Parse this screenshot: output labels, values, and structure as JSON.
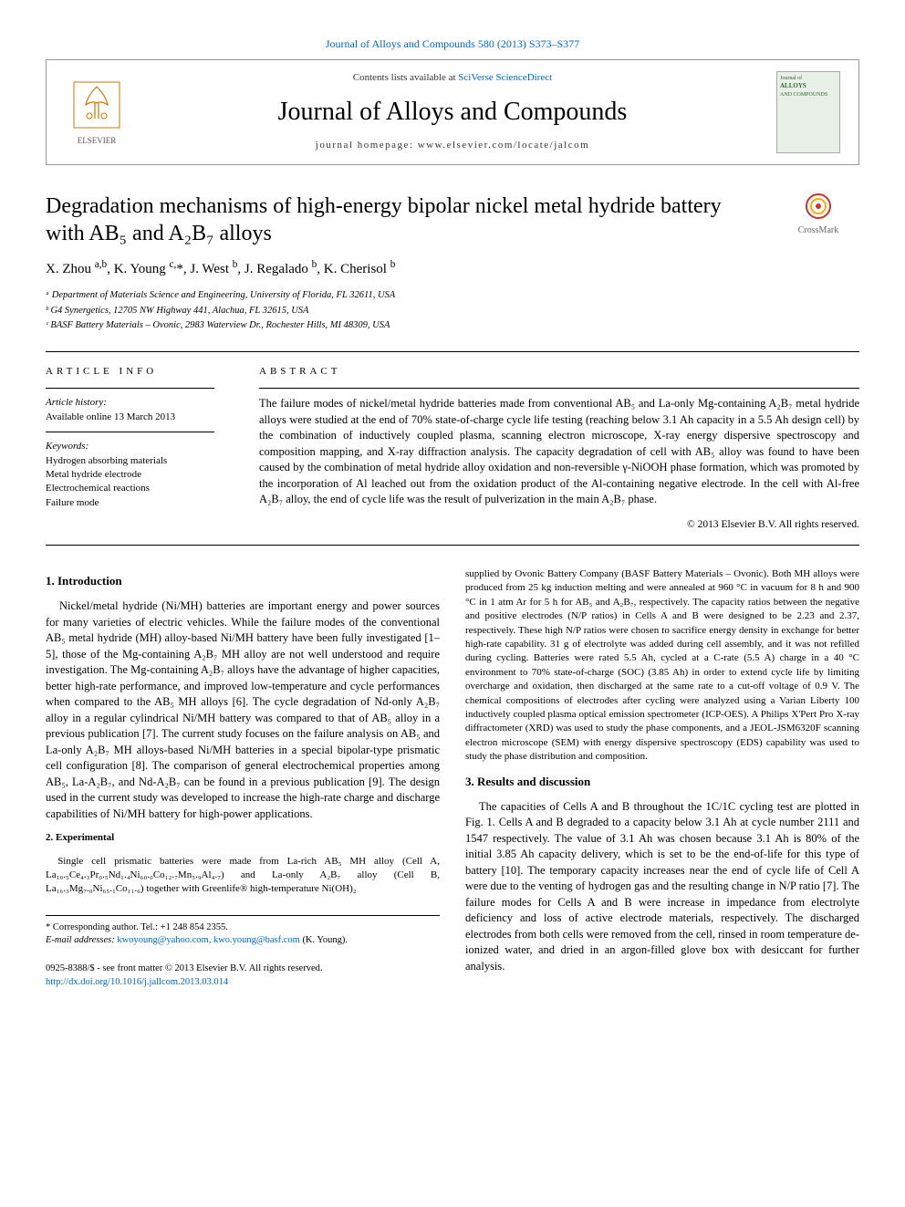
{
  "colors": {
    "link": "#0066cc",
    "text": "#000000",
    "border": "#999999",
    "bg": "#ffffff"
  },
  "typography": {
    "body_font": "Times New Roman",
    "body_size_pt": 12.5,
    "title_size_pt": 24,
    "journal_name_size_pt": 28,
    "small_size_pt": 11
  },
  "top_link": "Journal of Alloys and Compounds 580 (2013) S373–S377",
  "header": {
    "contents_prefix": "Contents lists available at ",
    "contents_link": "SciVerse ScienceDirect",
    "journal_name": "Journal of Alloys and Compounds",
    "homepage_prefix": "journal homepage: ",
    "homepage_url": "www.elsevier.com/locate/jalcom",
    "publisher_name": "ELSEVIER",
    "cover_text_1": "Journal of",
    "cover_text_2": "ALLOYS",
    "cover_text_3": "AND COMPOUNDS"
  },
  "crossmark_label": "CrossMark",
  "title": "Degradation mechanisms of high-energy bipolar nickel metal hydride battery with AB₅ and A₂B₇ alloys",
  "authors_html": "X. Zhou <sup>a,b</sup>, K. Young <sup>c,</sup>*, J. West <sup>b</sup>, J. Regalado <sup>b</sup>, K. Cherisol <sup>b</sup>",
  "affiliations": [
    "ᵃ Department of Materials Science and Engineering, University of Florida, FL 32611, USA",
    "ᵇ G4 Synergetics, 12705 NW Highway 441, Alachua, FL 32615, USA",
    "ᶜ BASF Battery Materials – Ovonic, 2983 Waterview Dr., Rochester Hills, MI 48309, USA"
  ],
  "article_info": {
    "heading": "article info",
    "history_label": "Article history:",
    "history_value": "Available online 13 March 2013",
    "keywords_label": "Keywords:",
    "keywords": [
      "Hydrogen absorbing materials",
      "Metal hydride electrode",
      "Electrochemical reactions",
      "Failure mode"
    ]
  },
  "abstract": {
    "heading": "abstract",
    "text": "The failure modes of nickel/metal hydride batteries made from conventional AB₅ and La-only Mg-containing A₂B₇ metal hydride alloys were studied at the end of 70% state-of-charge cycle life testing (reaching below 3.1 Ah capacity in a 5.5 Ah design cell) by the combination of inductively coupled plasma, scanning electron microscope, X-ray energy dispersive spectroscopy and composition mapping, and X-ray diffraction analysis. The capacity degradation of cell with AB₅ alloy was found to have been caused by the combination of metal hydride alloy oxidation and non-reversible γ-NiOOH phase formation, which was promoted by the incorporation of Al leached out from the oxidation product of the Al-containing negative electrode. In the cell with Al-free A₂B₇ alloy, the end of cycle life was the result of pulverization in the main A₂B₇ phase.",
    "copyright": "© 2013 Elsevier B.V. All rights reserved."
  },
  "sections": {
    "intro_heading": "1. Introduction",
    "intro_p1": "Nickel/metal hydride (Ni/MH) batteries are important energy and power sources for many varieties of electric vehicles. While the failure modes of the conventional AB₅ metal hydride (MH) alloy-based Ni/MH battery have been fully investigated [1–5], those of the Mg-containing A₂B₇ MH alloy are not well understood and require investigation. The Mg-containing A₂B₇ alloys have the advantage of higher capacities, better high-rate performance, and improved low-temperature and cycle performances when compared to the AB₅ MH alloys [6]. The cycle degradation of Nd-only A₂B₇ alloy in a regular cylindrical Ni/MH battery was compared to that of AB₅ alloy in a previous publication [7]. The current study focuses on the failure analysis on AB₅ and La-only A₂B₇ MH alloys-based Ni/MH batteries in a special bipolar-type prismatic cell configuration [8]. The comparison of general electrochemical properties among AB₅, La-A₂B₇, and Nd-A₂B₇ can be found in a previous publication [9]. The design used in the current study was developed to increase the high-rate charge and discharge capabilities of Ni/MH battery for high-power applications.",
    "exp_heading": "2. Experimental",
    "exp_p1": "Single cell prismatic batteries were made from La-rich AB₅ MH alloy (Cell A, La₁₀.₅Ce₄.₃Pr₀.₅Nd₁.₄Ni₆₀.₀Co₁₂.₇Mn₅.₉Al₄.₇) and La-only A₂B₇ alloy (Cell B, La₁₆.₃Mg₇.₀Ni₆₅.₁Co₁₁.₆) together with Greenlife® high-temperature Ni(OH)₂",
    "exp_p2": "supplied by Ovonic Battery Company (BASF Battery Materials – Ovonic). Both MH alloys were produced from 25 kg induction melting and were annealed at 960 °C in vacuum for 8 h and 900 °C in 1 atm Ar for 5 h for AB₅ and A₂B₇, respectively. The capacity ratios between the negative and positive electrodes (N/P ratios) in Cells A and B were designed to be 2.23 and 2.37, respectively. These high N/P ratios were chosen to sacrifice energy density in exchange for better high-rate capability. 31 g of electrolyte was added during cell assembly, and it was not refilled during cycling. Batteries were rated 5.5 Ah, cycled at a C-rate (5.5 A) charge in a 40 °C environment to 70% state-of-charge (SOC) (3.85 Ah) in order to extend cycle life by limiting overcharge and oxidation, then discharged at the same rate to a cut-off voltage of 0.9 V. The chemical compositions of electrodes after cycling were analyzed using a Varian Liberty 100 inductively coupled plasma optical emission spectrometer (ICP-OES). A Philips X'Pert Pro X-ray diffractometer (XRD) was used to study the phase components, and a JEOL-JSM6320F scanning electron microscope (SEM) with energy dispersive spectroscopy (EDS) capability was used to study the phase distribution and composition.",
    "results_heading": "3. Results and discussion",
    "results_p1": "The capacities of Cells A and B throughout the 1C/1C cycling test are plotted in Fig. 1. Cells A and B degraded to a capacity below 3.1 Ah at cycle number 2111 and 1547 respectively. The value of 3.1 Ah was chosen because 3.1 Ah is 80% of the initial 3.85 Ah capacity delivery, which is set to be the end-of-life for this type of battery [10]. The temporary capacity increases near the end of cycle life of Cell A were due to the venting of hydrogen gas and the resulting change in N/P ratio [7]. The failure modes for Cells A and B were increase in impedance from electrolyte deficiency and loss of active electrode materials, respectively. The discharged electrodes from both cells were removed from the cell, rinsed in room temperature de-ionized water, and dried in an argon-filled glove box with desiccant for further analysis."
  },
  "corresponding": {
    "label": "* Corresponding author. Tel.: +1 248 854 2355.",
    "email_label": "E-mail addresses: ",
    "emails": "kwoyoung@yahoo.com, kwo.young@basf.com",
    "email_suffix": " (K. Young)."
  },
  "bottom": {
    "line1": "0925-8388/$ - see front matter © 2013 Elsevier B.V. All rights reserved.",
    "doi": "http://dx.doi.org/10.1016/j.jallcom.2013.03.014"
  }
}
